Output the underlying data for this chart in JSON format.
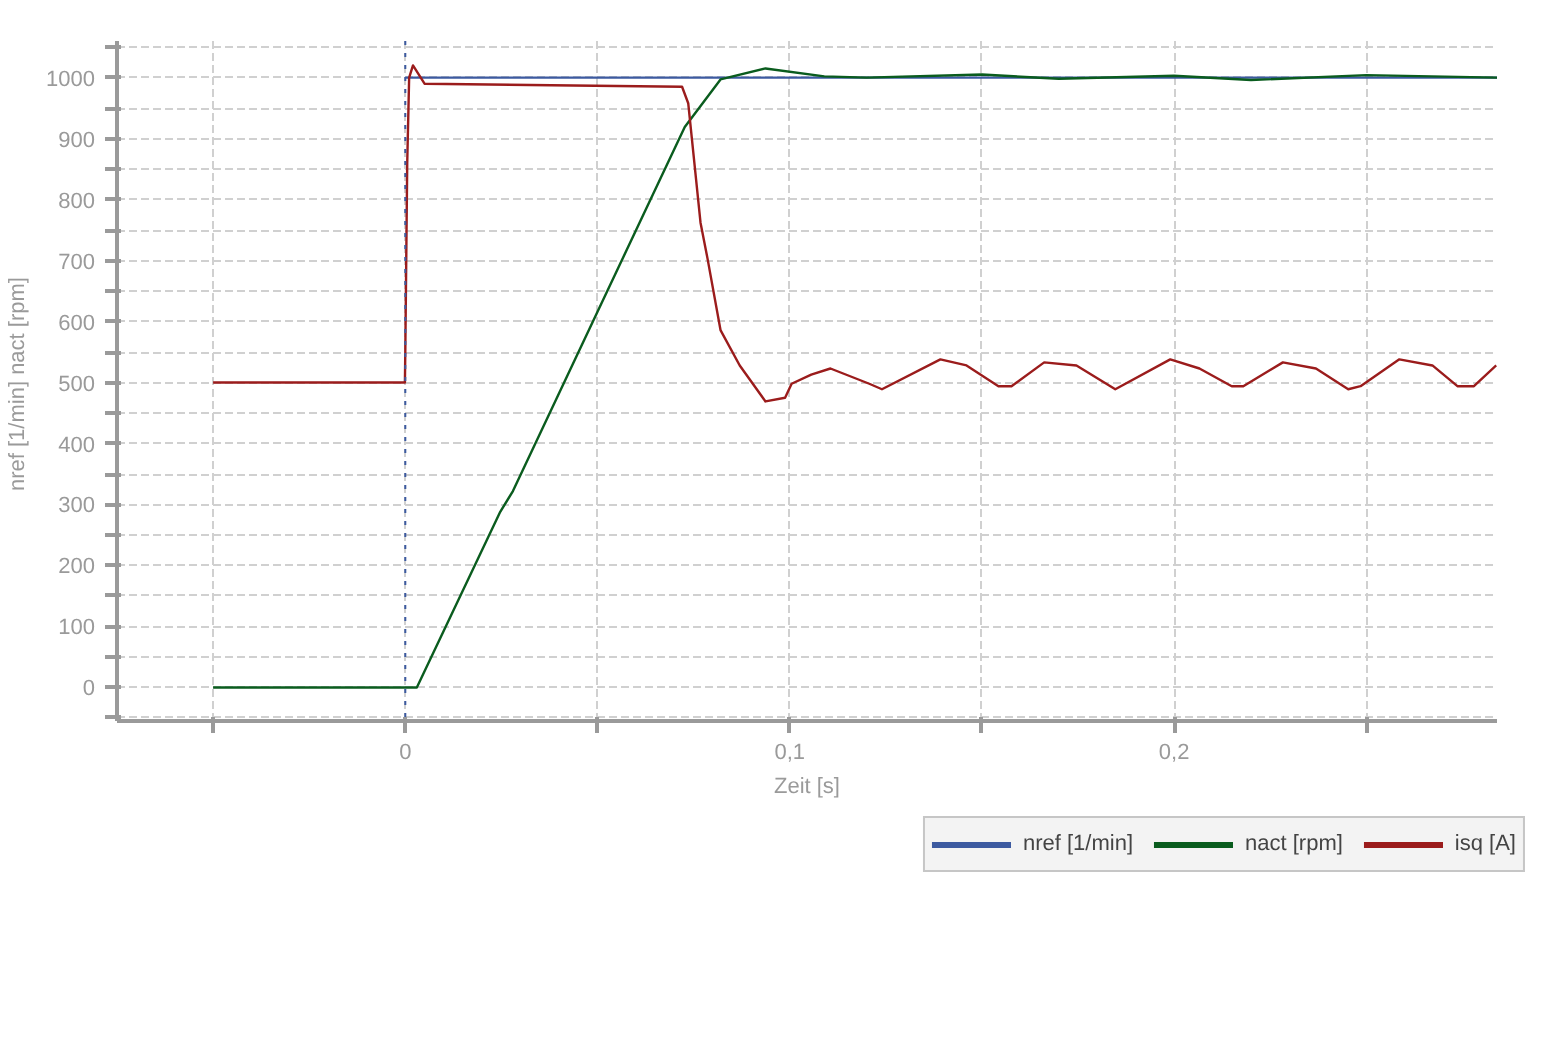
{
  "chart_data": {
    "type": "line",
    "xlabel": "Zeit [s]",
    "ylabel": "nref [1/min]  nact [rpm]",
    "xlim": [
      -0.075,
      0.284
    ],
    "ylim": [
      -55,
      1060
    ],
    "xticks": [
      {
        "value": -0.05,
        "label": null
      },
      {
        "value": 0,
        "label": "0"
      },
      {
        "value": 0.05,
        "label": null
      },
      {
        "value": 0.1,
        "label": "0,1"
      },
      {
        "value": 0.15,
        "label": null
      },
      {
        "value": 0.2,
        "label": "0,2"
      },
      {
        "value": 0.25,
        "label": null
      }
    ],
    "yticks": [
      {
        "value": -50,
        "label": null
      },
      0,
      {
        "value": 50,
        "label": null
      },
      100,
      {
        "value": 150,
        "label": null
      },
      200,
      {
        "value": 250,
        "label": null
      },
      300,
      {
        "value": 350,
        "label": null
      },
      400,
      {
        "value": 450,
        "label": null
      },
      500,
      {
        "value": 550,
        "label": null
      },
      600,
      {
        "value": 650,
        "label": null
      },
      700,
      {
        "value": 750,
        "label": null
      },
      800,
      {
        "value": 850,
        "label": null
      },
      900,
      {
        "value": 950,
        "label": null
      },
      1000,
      {
        "value": 1050,
        "label": null
      }
    ],
    "grid": true,
    "legend": "bottom right",
    "line_style": "solid",
    "marker": "none",
    "ref_lines": [
      {
        "axis": "x",
        "value": 0,
        "color": "#3c5aa0",
        "line_style": "dotted"
      }
    ],
    "series": [
      {
        "name": "nref [1/min]",
        "color": "#3c5aa0",
        "x": [
          0,
          0.284
        ],
        "values": [
          1000,
          1000
        ]
      },
      {
        "name": "nact [rpm]",
        "color": "#0a5c1e",
        "x": [
          -0.05,
          0.003,
          0.0247,
          0.028,
          0.05,
          0.0727,
          0.082,
          0.0937,
          0.109,
          0.12,
          0.15,
          0.17,
          0.2,
          0.22,
          0.25,
          0.284
        ],
        "values": [
          0,
          0,
          288,
          322,
          616,
          919,
          997,
          1015,
          1002,
          1000,
          1005,
          998,
          1003,
          996,
          1004,
          1000
        ]
      },
      {
        "name": "isq [A]",
        "color": "#9b1c1c",
        "x": [
          -0.05,
          -0.0001,
          0,
          0.0005,
          0.001,
          0.002,
          0.005,
          0.072,
          0.0736,
          0.0768,
          0.0786,
          0.082,
          0.087,
          0.0937,
          0.0988,
          0.1005,
          0.1056,
          0.1106,
          0.1207,
          0.124,
          0.1392,
          0.146,
          0.1543,
          0.1577,
          0.1662,
          0.1746,
          0.1847,
          0.199,
          0.2066,
          0.215,
          0.218,
          0.2283,
          0.2369,
          0.2453,
          0.2485,
          0.2586,
          0.2672,
          0.2737,
          0.278,
          0.2838
        ],
        "values": [
          500,
          500,
          550,
          860,
          1000,
          1020,
          990,
          985,
          958,
          762,
          704,
          586,
          528,
          469,
          475,
          498,
          513,
          523,
          498,
          489,
          538,
          528,
          494,
          494,
          533,
          528,
          489,
          538,
          523,
          494,
          494,
          533,
          523,
          489,
          494,
          538,
          528,
          494,
          494,
          528
        ]
      }
    ]
  }
}
